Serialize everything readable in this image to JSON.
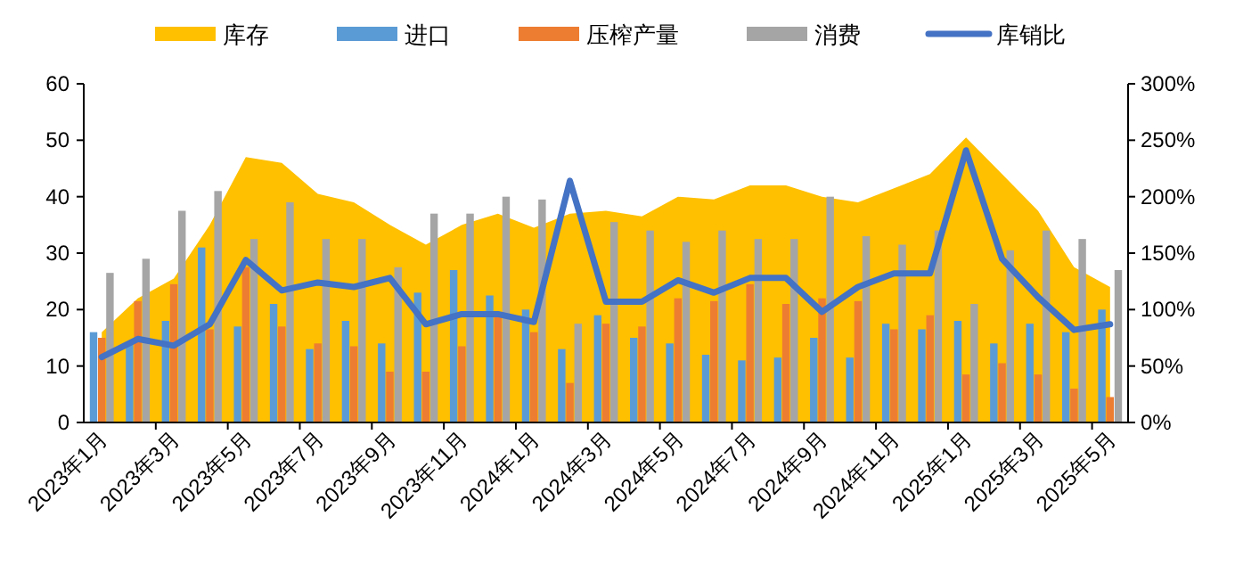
{
  "chart_data": {
    "type": "bar",
    "legend": "top",
    "grid": false,
    "categories": [
      "2023年1月",
      null,
      "2023年3月",
      null,
      "2023年5月",
      null,
      "2023年7月",
      null,
      "2023年9月",
      null,
      "2023年11月",
      null,
      "2024年1月",
      null,
      "2024年3月",
      null,
      "2024年5月",
      null,
      "2024年7月",
      null,
      "2024年9月",
      null,
      "2024年11月",
      null,
      "2025年1月",
      null,
      "2025年3月",
      null,
      "2025年5月"
    ],
    "ylim": [
      0,
      60
    ],
    "yticks": [
      0,
      10,
      20,
      30,
      40,
      50,
      60
    ],
    "y2lim": [
      0,
      300
    ],
    "y2ticks": [
      {
        "value": 0,
        "label": "0%"
      },
      {
        "value": 50,
        "label": "50%"
      },
      {
        "value": 100,
        "label": "100%"
      },
      {
        "value": 150,
        "label": "150%"
      },
      {
        "value": 200,
        "label": "200%"
      },
      {
        "value": 250,
        "label": "250%"
      },
      {
        "value": 300,
        "label": "300%"
      }
    ],
    "series": [
      {
        "name": "库存",
        "type": "area",
        "color": "#ffc000",
        "values": [
          16,
          22,
          25.5,
          35,
          47,
          46,
          40.5,
          39,
          35,
          31.5,
          35,
          37,
          34.5,
          37,
          37.5,
          36.5,
          40,
          39.5,
          42,
          42,
          40,
          39,
          41.5,
          44,
          50.5,
          44,
          37.5,
          27.5,
          24
        ]
      },
      {
        "name": "进口",
        "color": "#5b9bd5",
        "values": [
          16,
          14,
          18,
          31,
          17,
          21,
          13,
          18,
          14,
          23,
          27,
          22.5,
          20,
          13,
          19,
          15,
          14,
          12,
          11,
          11.5,
          15,
          11.5,
          17.5,
          16.5,
          18,
          14,
          17.5,
          16,
          20
        ]
      },
      {
        "name": "压榨产量",
        "color": "#ed7d31",
        "values": [
          15,
          21.5,
          24.5,
          16.5,
          27.5,
          17,
          14,
          13.5,
          9,
          9,
          13.5,
          19,
          16,
          7,
          17.5,
          17,
          22,
          21.5,
          24.5,
          21,
          22,
          21.5,
          16.5,
          19,
          8.5,
          10.5,
          8.5,
          6,
          4.5
        ]
      },
      {
        "name": "消费",
        "color": "#a5a5a5",
        "values": [
          26.5,
          29,
          37.5,
          41,
          32.5,
          39,
          32.5,
          32.5,
          27.5,
          37,
          37,
          40,
          39.5,
          17.5,
          35.5,
          34,
          32,
          34,
          32.5,
          32.5,
          40,
          33,
          31.5,
          34,
          21,
          30.5,
          34,
          32.5,
          27
        ]
      },
      {
        "name": "库销比",
        "type": "line",
        "axis": "y2",
        "color": "#4472c4",
        "values": [
          58,
          74,
          68,
          87,
          144,
          117,
          124,
          120,
          128,
          87,
          96,
          96,
          89,
          214,
          107,
          107,
          126,
          115,
          128,
          128,
          98,
          120,
          132,
          132,
          241,
          145,
          111,
          82,
          87
        ]
      }
    ]
  }
}
